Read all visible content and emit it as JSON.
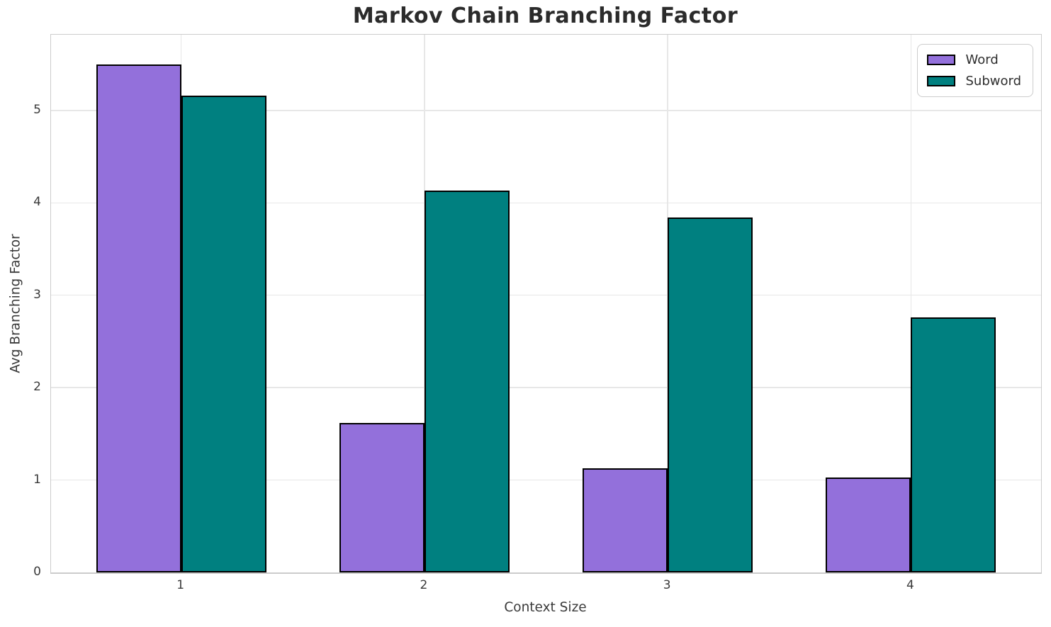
{
  "title": "Markov Chain Branching Factor",
  "chart_data": {
    "type": "bar",
    "categories": [
      1,
      2,
      3,
      4
    ],
    "series": [
      {
        "name": "Word",
        "color": "#9370DB",
        "values": [
          5.5,
          1.62,
          1.13,
          1.03
        ]
      },
      {
        "name": "Subword",
        "color": "#008080",
        "values": [
          5.16,
          4.13,
          3.84,
          2.76
        ]
      }
    ],
    "xlabel": "Context Size",
    "ylabel": "Avg Branching Factor",
    "ylim": [
      0,
      5.82
    ],
    "yticks": [
      0,
      1,
      2,
      3,
      4,
      5
    ],
    "xticks": [
      "1",
      "2",
      "3",
      "4"
    ],
    "bar_width": 0.35,
    "grid": true,
    "legend_position": "upper right",
    "bar_edge_color": "#000000",
    "grid_color": "#e7e7e7",
    "spine_color": "#cccccc",
    "text_color": "#3a3a3a",
    "background_color": "#ffffff"
  }
}
